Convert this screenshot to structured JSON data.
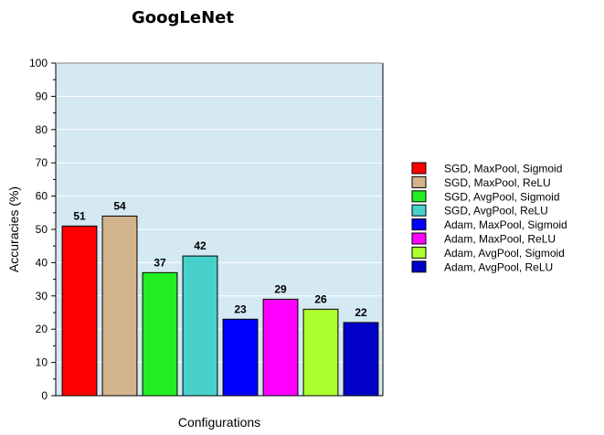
{
  "chart_data": {
    "type": "bar",
    "title": "GoogLeNet",
    "xlabel": "Configurations",
    "ylabel": "Accuracies (%)",
    "ylim": [
      0,
      100
    ],
    "y_ticks": [
      "0",
      "10",
      "20",
      "30",
      "40",
      "50",
      "60",
      "70",
      "80",
      "90",
      "100"
    ],
    "grid": true,
    "legend_position": "right",
    "plot_background": "#d4e9f2",
    "categories": [
      "SGD, MaxPool, Sigmoid",
      "SGD, MaxPool, ReLU",
      "SGD, AvgPool, Sigmoid",
      "SGD, AvgPool, ReLU",
      "Adam, MaxPool, Sigmoid",
      "Adam, MaxPool, ReLU",
      "Adam, AvgPool, Sigmoid",
      "Adam, AvgPool, ReLU"
    ],
    "values": [
      51,
      54,
      37,
      42,
      23,
      29,
      26,
      22
    ],
    "value_labels": [
      "51",
      "54",
      "37",
      "42",
      "23",
      "29",
      "26",
      "22"
    ],
    "colors": [
      "#ff0000",
      "#d2b48c",
      "#22ee22",
      "#48d1cc",
      "#0000ff",
      "#ff00ff",
      "#adff2f",
      "#0000c8"
    ]
  }
}
